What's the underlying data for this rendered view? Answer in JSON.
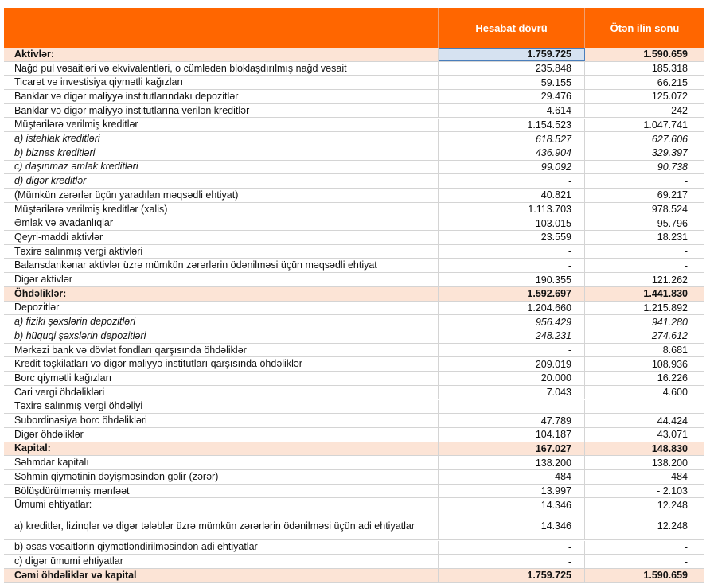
{
  "table": {
    "columns": [
      "Hesabat dövrü",
      "Ötən ilin sonu"
    ],
    "rows": [
      {
        "label": "Aktivlər:",
        "current": "1.759.725",
        "previous": "1.590.659",
        "style": "total"
      },
      {
        "label": "Nağd pul vəsaitləri və  ekvivalentləri, o cümlədən bloklaşdırılmış nağd vəsait",
        "current": "235.848",
        "previous": "185.318"
      },
      {
        "label": "Ticarət və investisiya qiymətli kağızları",
        "current": "59.155",
        "previous": "66.215"
      },
      {
        "label": "Banklar və digər maliyyə institutlarındakı depozitlər",
        "current": "29.476",
        "previous": "125.072"
      },
      {
        "label": "Banklar və digər maliyyə institutlarına verilən kreditlər",
        "current": "4.614",
        "previous": "242"
      },
      {
        "label": "Müştərilərə verilmiş kreditlər",
        "current": "1.154.523",
        "previous": "1.047.741"
      },
      {
        "label": "a) istehlak kreditləri",
        "current": "618.527",
        "previous": "627.606",
        "style": "italic"
      },
      {
        "label": "b) biznes kreditləri",
        "current": "436.904",
        "previous": "329.397",
        "style": "italic"
      },
      {
        "label": "c) daşınmaz əmlak kreditləri",
        "current": "99.092",
        "previous": "90.738",
        "style": "italic"
      },
      {
        "label": "d) digər kreditlər",
        "current": "-",
        "previous": "-",
        "style": "italic"
      },
      {
        "label": "(Mümkün zərərlər üçün yaradılan məqsədli ehtiyat)",
        "current": "40.821",
        "previous": "69.217"
      },
      {
        "label": "Müştərilərə verilmiş kreditlər (xalis)",
        "current": "1.113.703",
        "previous": "978.524"
      },
      {
        "label": "Əmlak və avadanlıqlar",
        "current": "103.015",
        "previous": "95.796"
      },
      {
        "label": "Qeyri-maddi aktivlər",
        "current": "23.559",
        "previous": "18.231"
      },
      {
        "label": "Təxirə salınmış vergi aktivləri",
        "current": "-",
        "previous": "-"
      },
      {
        "label": "Balansdankənar aktivlər üzrə mümkün zərərlərin ödənilməsi üçün məqsədli ehtiyat",
        "current": "-",
        "previous": "-"
      },
      {
        "label": "Digər aktivlər",
        "current": "190.355",
        "previous": "121.262"
      },
      {
        "label": "Öhdəliklər:",
        "current": "1.592.697",
        "previous": "1.441.830",
        "style": "total"
      },
      {
        "label": "Depozitlər",
        "current": "1.204.660",
        "previous": "1.215.892"
      },
      {
        "label": "a) fiziki şəxslərin depozitləri",
        "current": "956.429",
        "previous": "941.280",
        "style": "italic"
      },
      {
        "label": "b) hüquqi şəxslərin depozitləri",
        "current": "248.231",
        "previous": "274.612",
        "style": "italic"
      },
      {
        "label": "Mərkəzi bank və dövlət fondları qarşısında öhdəliklər",
        "current": "-",
        "previous": "8.681"
      },
      {
        "label": "Kredit təşkilatları və digər maliyyə institutları qarşısında öhdəliklər",
        "current": "209.019",
        "previous": "108.936"
      },
      {
        "label": "Borc qiymətli kağızları",
        "current": "20.000",
        "previous": "16.226"
      },
      {
        "label": "Cari vergi öhdəlikləri",
        "current": "7.043",
        "previous": "4.600"
      },
      {
        "label": "Təxirə salınmış vergi öhdəliyi",
        "current": "-",
        "previous": "-"
      },
      {
        "label": "Subordinasiya borc öhdəlikləri",
        "current": "47.789",
        "previous": "44.424"
      },
      {
        "label": "Digər öhdəliklər",
        "current": "104.187",
        "previous": "43.071"
      },
      {
        "label": "Kapital:",
        "current": "167.027",
        "previous": "148.830",
        "style": "total"
      },
      {
        "label": "Səhmdar kapitalı",
        "current": "138.200",
        "previous": "138.200"
      },
      {
        "label": "Səhmin qiymətinin dəyişməsindən gəlir (zərər)",
        "current": "484",
        "previous": "484"
      },
      {
        "label": "Bölüşdürülməmiş mənfəət",
        "current": "13.997",
        "previous": "- 2.103"
      },
      {
        "label": "Ümumi ehtiyatlar:",
        "current": "14.346",
        "previous": "12.248"
      },
      {
        "label": "a) kreditlər, lizinqlər və digər tələblər üzrə mümkün zərərlərin ödənilməsi üçün adi ehtiyatlar",
        "current": "14.346",
        "previous": "12.248"
      },
      {
        "label": "b) əsas vəsaitlərin qiymətləndirilməsindən adi ehtiyatlar",
        "current": "-",
        "previous": "-"
      },
      {
        "label": "c) digər ümumi ehtiyatlar",
        "current": "-",
        "previous": "-"
      },
      {
        "label": "Cəmi öhdəliklər və kapital",
        "current": "1.759.725",
        "previous": "1.590.659",
        "style": "total"
      }
    ]
  }
}
